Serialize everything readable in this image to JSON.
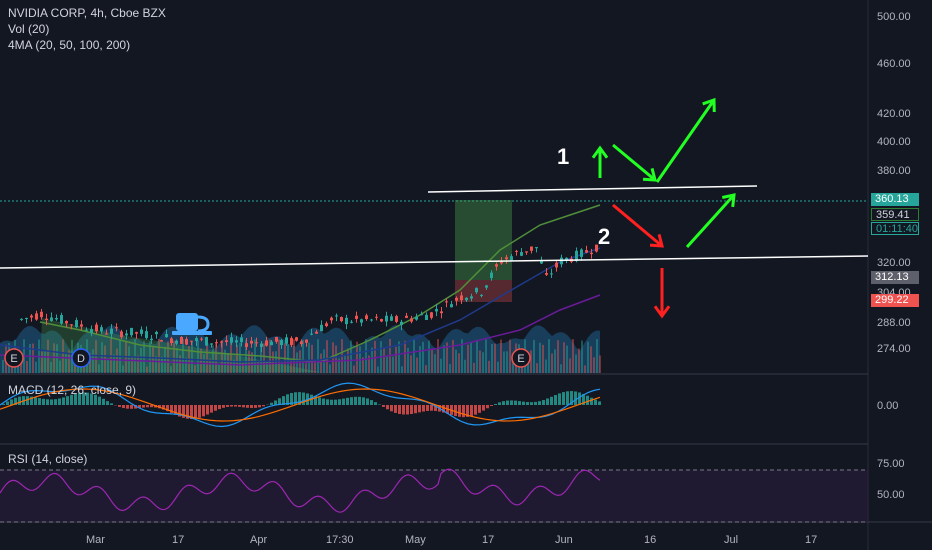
{
  "legend": {
    "main_title": "NVIDIA CORP, 4h, Cboe BZX",
    "volume": "Vol (20)",
    "ma": "4MA (20, 50, 100, 200)"
  },
  "macd_title": "MACD (12, 26, close, 9)",
  "rsi_title": "RSI (14, close)",
  "price_axis": [
    "500.00",
    "460.00",
    "420.00",
    "380.00",
    "304.00",
    "288.00",
    "274.00"
  ],
  "price_axis_labels": {
    "p500": "500.00",
    "p460": "460.00",
    "p420": "420.00",
    "p400": "400.00",
    "p380": "380.00",
    "p320": "320.00",
    "p304": "304.00",
    "p288": "288.00",
    "p274": "274.00"
  },
  "price_tags": {
    "last": "360.13",
    "ma20": "359.41",
    "countdown": "01:11:40",
    "level": "312.13",
    "ma50": "299.22"
  },
  "macd_axis": {
    "zero": "0.00"
  },
  "rsi_axis": {
    "upper": "75.00",
    "mid": "50.00"
  },
  "time_axis": [
    "Mar",
    "17",
    "Apr",
    "17:30",
    "May",
    "17",
    "Jun",
    "16",
    "Jul",
    "17"
  ],
  "annotations": {
    "one": "1",
    "two": "2"
  },
  "event_markers": [
    "E",
    "D",
    "E"
  ],
  "colors": {
    "background": "#131722",
    "up": "#26a69a",
    "down": "#ef5350",
    "up_arrow": "#22ff22",
    "down_arrow": "#ff2020",
    "ma20": "#2e7d32",
    "ma50": "#1e3a8a",
    "ma100": "#6a1b9a",
    "macd": "#2196f3",
    "signal": "#ff6d00",
    "rsi": "#9c27b0"
  },
  "chart_data": {
    "type": "line",
    "symbol": "NVIDIA CORP",
    "interval": "4h",
    "ylim": [
      260,
      510
    ],
    "close_series": {
      "x": [
        "Mar",
        "17",
        "Apr",
        "17:30",
        "May",
        "17",
        "Jun"
      ],
      "values": [
        305,
        290,
        283,
        290,
        300,
        348,
        360
      ]
    },
    "last_price": 360.13
  }
}
